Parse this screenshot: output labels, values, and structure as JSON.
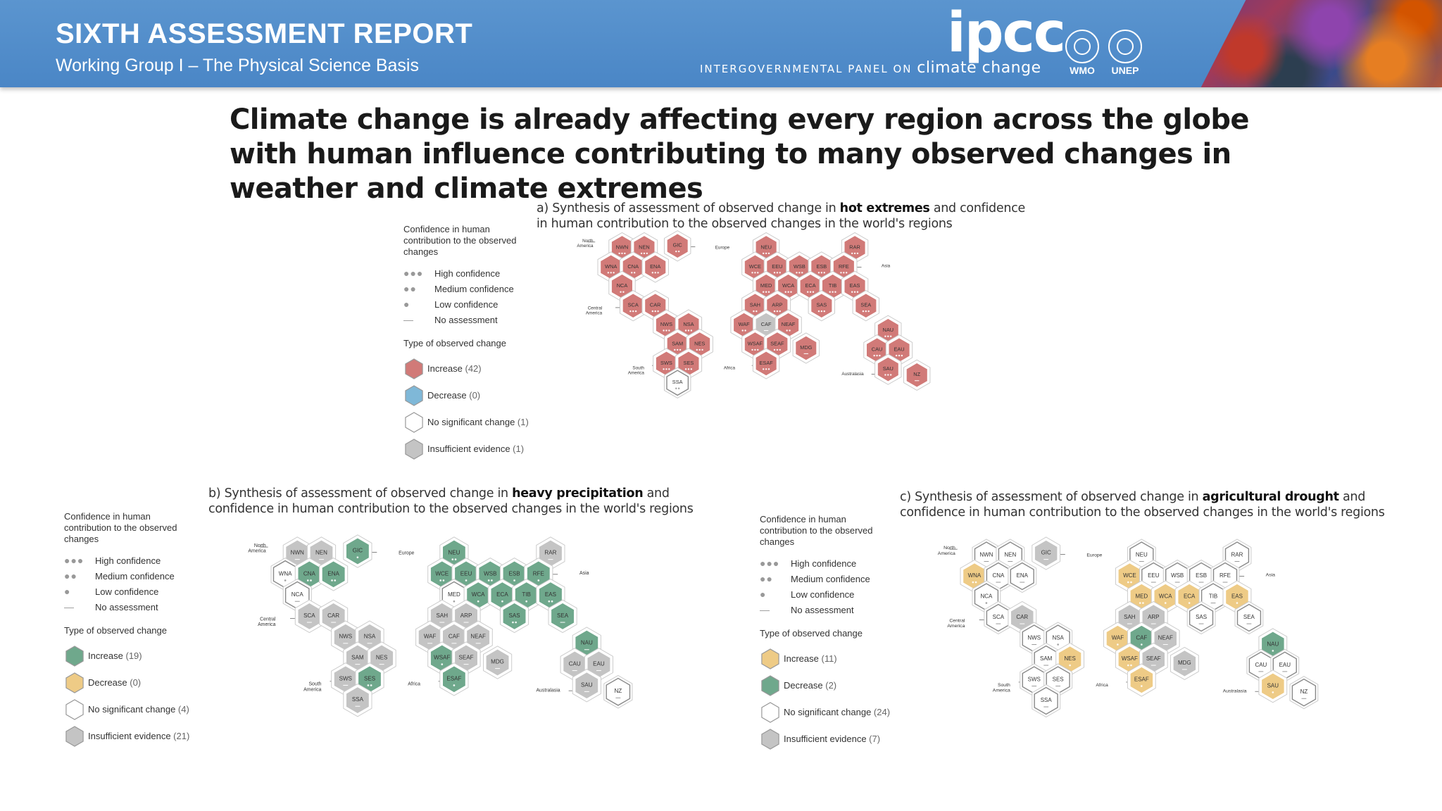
{
  "header": {
    "title": "SIXTH ASSESSMENT REPORT",
    "subtitle": "Working Group I – The Physical Science Basis",
    "logo_text": "ipcc",
    "tagline_small": "INTERGOVERNMENTAL PANEL ON",
    "tagline_big": "climate change",
    "org1": "WMO",
    "org2": "UNEP"
  },
  "headline": "Climate change is already affecting every region across the globe with human influence contributing to many observed changes in weather and climate extremes",
  "colors": {
    "banner": "#4a86c6",
    "increase_hot": "#d17a78",
    "increase_precip": "#6fa88c",
    "decrease_precip": "#eecb86",
    "increase_drought": "#eecb86",
    "decrease_drought": "#6fa88c",
    "insufficient": "#c4c4c4",
    "no_change": "#ffffff",
    "cold": "#7fb8d8"
  },
  "legend_common": {
    "confidence_title": "Confidence in human contribution to the observed changes",
    "high": "High confidence",
    "medium": "Medium confidence",
    "low": "Low confidence",
    "none": "No assessment",
    "type_title": "Type of observed change"
  },
  "continent_labels": [
    "North America",
    "Europe",
    "Asia",
    "Central America",
    "South America",
    "Africa",
    "Australasia"
  ],
  "panels": {
    "a": {
      "title_pre": "a) Synthesis of assessment of observed change in ",
      "title_bold": "hot extremes",
      "title_post": " and confidence in human contribution to the observed changes in the world's regions",
      "legend": [
        {
          "label": "Increase",
          "count": "(42)",
          "color": "#d17a78"
        },
        {
          "label": "Decrease",
          "count": "(0)",
          "color": "#7fb8d8"
        },
        {
          "label": "No significant change",
          "count": "(1)",
          "color": "#ffffff"
        },
        {
          "label": "Insufficient evidence",
          "count": "(1)",
          "color": "#c4c4c4"
        }
      ]
    },
    "b": {
      "title_pre": "b) Synthesis of assessment of observed change in ",
      "title_bold": "heavy precipitation",
      "title_post": " and confidence in human contribution to the observed changes in the world's regions",
      "legend": [
        {
          "label": "Increase",
          "count": "(19)",
          "color": "#6fa88c"
        },
        {
          "label": "Decrease",
          "count": "(0)",
          "color": "#eecb86"
        },
        {
          "label": "No significant change",
          "count": "(4)",
          "color": "#ffffff"
        },
        {
          "label": "Insufficient evidence",
          "count": "(21)",
          "color": "#c4c4c4"
        }
      ]
    },
    "c": {
      "title_pre": "c) Synthesis of assessment of observed change in ",
      "title_bold": "agricultural drought",
      "title_post": " and confidence in human contribution to the observed changes in the world's regions",
      "legend": [
        {
          "label": "Increase",
          "count": "(11)",
          "color": "#eecb86"
        },
        {
          "label": "Decrease",
          "count": "(2)",
          "color": "#6fa88c"
        },
        {
          "label": "No significant change",
          "count": "(24)",
          "color": "#ffffff"
        },
        {
          "label": "Insufficient evidence",
          "count": "(7)",
          "color": "#c4c4c4"
        }
      ]
    }
  },
  "regions": {
    "hot": [
      [
        "NWN",
        "I",
        3
      ],
      [
        "NEN",
        "I",
        3
      ],
      [
        "GIC",
        "I",
        2
      ],
      [
        "WNA",
        "I",
        3
      ],
      [
        "CNA",
        "I",
        2
      ],
      [
        "ENA",
        "I",
        3
      ],
      [
        "NCA",
        "I",
        2
      ],
      [
        "SCA",
        "I",
        3
      ],
      [
        "CAR",
        "I",
        3
      ],
      [
        "NWS",
        "I",
        3
      ],
      [
        "NSA",
        "I",
        3
      ],
      [
        "SAM",
        "I",
        3
      ],
      [
        "NES",
        "I",
        3
      ],
      [
        "SWS",
        "I",
        3
      ],
      [
        "SES",
        "I",
        3
      ],
      [
        "SSA",
        "N",
        2
      ],
      [
        "NEU",
        "I",
        3
      ],
      [
        "RAR",
        "I",
        3
      ],
      [
        "WCE",
        "I",
        3
      ],
      [
        "EEU",
        "I",
        3
      ],
      [
        "WSB",
        "I",
        3
      ],
      [
        "ESB",
        "I",
        3
      ],
      [
        "RFE",
        "I",
        3
      ],
      [
        "MED",
        "I",
        3
      ],
      [
        "WCA",
        "I",
        3
      ],
      [
        "ECA",
        "I",
        3
      ],
      [
        "TIB",
        "I",
        3
      ],
      [
        "EAS",
        "I",
        3
      ],
      [
        "SAH",
        "I",
        2
      ],
      [
        "ARP",
        "I",
        3
      ],
      [
        "SAS",
        "I",
        3
      ],
      [
        "SEA",
        "I",
        3
      ],
      [
        "WAF",
        "I",
        2
      ],
      [
        "CAF",
        "S",
        0
      ],
      [
        "NEAF",
        "I",
        2
      ],
      [
        "WSAF",
        "I",
        3
      ],
      [
        "SEAF",
        "I",
        3
      ],
      [
        "MDG",
        "I",
        0
      ],
      [
        "ESAF",
        "I",
        3
      ],
      [
        "NAU",
        "I",
        3
      ],
      [
        "CAU",
        "I",
        3
      ],
      [
        "EAU",
        "I",
        3
      ],
      [
        "SAU",
        "I",
        3
      ],
      [
        "NZ",
        "I",
        0
      ]
    ],
    "precip": [
      [
        "NWN",
        "S",
        0
      ],
      [
        "NEN",
        "S",
        0
      ],
      [
        "GIC",
        "I",
        1
      ],
      [
        "WNA",
        "N",
        1
      ],
      [
        "CNA",
        "I",
        2
      ],
      [
        "ENA",
        "I",
        2
      ],
      [
        "NCA",
        "N",
        0
      ],
      [
        "SCA",
        "S",
        0
      ],
      [
        "CAR",
        "S",
        0
      ],
      [
        "NWS",
        "S",
        0
      ],
      [
        "NSA",
        "S",
        0
      ],
      [
        "SAM",
        "S",
        0
      ],
      [
        "NES",
        "S",
        0
      ],
      [
        "SWS",
        "S",
        0
      ],
      [
        "SES",
        "I",
        2
      ],
      [
        "SSA",
        "S",
        0
      ],
      [
        "NEU",
        "I",
        2
      ],
      [
        "RAR",
        "S",
        0
      ],
      [
        "WCE",
        "I",
        2
      ],
      [
        "EEU",
        "I",
        1
      ],
      [
        "WSB",
        "I",
        2
      ],
      [
        "ESB",
        "I",
        1
      ],
      [
        "RFE",
        "I",
        1
      ],
      [
        "MED",
        "N",
        1
      ],
      [
        "WCA",
        "I",
        1
      ],
      [
        "ECA",
        "I",
        1
      ],
      [
        "TIB",
        "I",
        1
      ],
      [
        "EAS",
        "I",
        2
      ],
      [
        "SAH",
        "S",
        0
      ],
      [
        "ARP",
        "S",
        0
      ],
      [
        "SAS",
        "I",
        2
      ],
      [
        "SEA",
        "I",
        0
      ],
      [
        "WAF",
        "S",
        0
      ],
      [
        "CAF",
        "S",
        0
      ],
      [
        "NEAF",
        "S",
        0
      ],
      [
        "WSAF",
        "I",
        1
      ],
      [
        "SEAF",
        "S",
        0
      ],
      [
        "MDG",
        "S",
        0
      ],
      [
        "ESAF",
        "I",
        1
      ],
      [
        "NAU",
        "I",
        0
      ],
      [
        "CAU",
        "S",
        0
      ],
      [
        "EAU",
        "S",
        0
      ],
      [
        "SAU",
        "S",
        0
      ],
      [
        "NZ",
        "N",
        0
      ]
    ],
    "drought": [
      [
        "NWN",
        "N",
        0
      ],
      [
        "NEN",
        "N",
        0
      ],
      [
        "GIC",
        "S",
        0
      ],
      [
        "WNA",
        "I",
        2
      ],
      [
        "CNA",
        "N",
        0
      ],
      [
        "ENA",
        "N",
        0
      ],
      [
        "NCA",
        "N",
        1
      ],
      [
        "SCA",
        "N",
        0
      ],
      [
        "CAR",
        "S",
        0
      ],
      [
        "NWS",
        "N",
        0
      ],
      [
        "NSA",
        "N",
        1
      ],
      [
        "SAM",
        "N",
        0
      ],
      [
        "NES",
        "I",
        1
      ],
      [
        "SWS",
        "N",
        0
      ],
      [
        "SES",
        "N",
        0
      ],
      [
        "SSA",
        "N",
        0
      ],
      [
        "NEU",
        "N",
        0
      ],
      [
        "RAR",
        "N",
        0
      ],
      [
        "WCE",
        "I",
        2
      ],
      [
        "EEU",
        "N",
        0
      ],
      [
        "WSB",
        "N",
        0
      ],
      [
        "ESB",
        "N",
        0
      ],
      [
        "RFE",
        "N",
        0
      ],
      [
        "MED",
        "I",
        2
      ],
      [
        "WCA",
        "I",
        1
      ],
      [
        "ECA",
        "I",
        1
      ],
      [
        "TIB",
        "N",
        0
      ],
      [
        "EAS",
        "I",
        1
      ],
      [
        "SAH",
        "S",
        0
      ],
      [
        "ARP",
        "S",
        0
      ],
      [
        "SAS",
        "N",
        0
      ],
      [
        "SEA",
        "N",
        0
      ],
      [
        "WAF",
        "I",
        1
      ],
      [
        "CAF",
        "D",
        1
      ],
      [
        "NEAF",
        "S",
        0
      ],
      [
        "WSAF",
        "I",
        2
      ],
      [
        "SEAF",
        "S",
        0
      ],
      [
        "MDG",
        "S",
        0
      ],
      [
        "ESAF",
        "I",
        1
      ],
      [
        "NAU",
        "D",
        1
      ],
      [
        "CAU",
        "N",
        0
      ],
      [
        "EAU",
        "N",
        0
      ],
      [
        "SAU",
        "I",
        1
      ],
      [
        "NZ",
        "N",
        0
      ]
    ]
  }
}
